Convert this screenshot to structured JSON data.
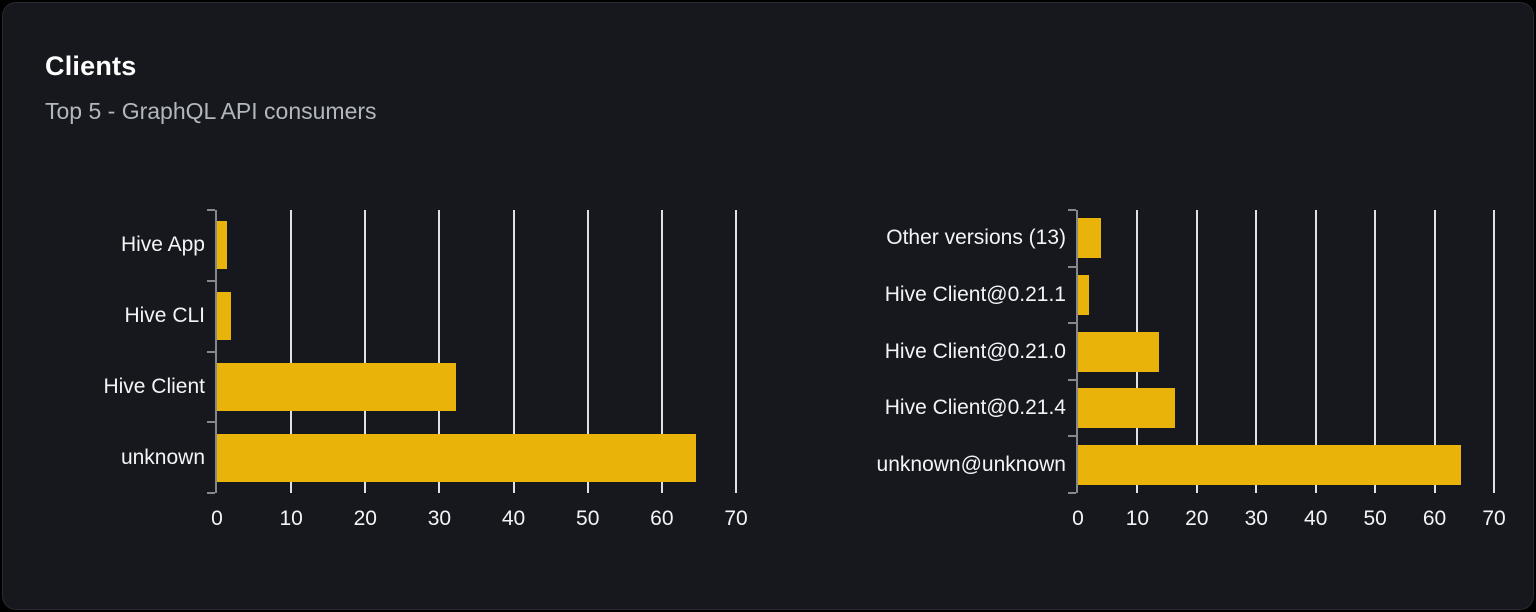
{
  "header": {
    "title": "Clients",
    "subtitle": "Top 5 - GraphQL API consumers"
  },
  "colors": {
    "page_bg": "#000000",
    "card_bg": "#16181d",
    "card_border": "#272a31",
    "bar": "#e9b30a",
    "gridline": "#dde2ea",
    "axis": "#85898f",
    "title": "#ffffff",
    "subtitle": "#b2b7bf",
    "label": "#f2f4f7"
  },
  "chart_data": [
    {
      "type": "bar",
      "orientation": "horizontal",
      "name": "clients-by-name",
      "categories": [
        "Hive App",
        "Hive CLI",
        "Hive Client",
        "unknown"
      ],
      "values": [
        1.3,
        1.9,
        32.2,
        64.6
      ],
      "xlim": [
        0,
        70
      ],
      "x_ticks": [
        0,
        10,
        20,
        30,
        40,
        50,
        60,
        70
      ],
      "grid": true,
      "legend": false,
      "title": "",
      "xlabel": "",
      "ylabel": ""
    },
    {
      "type": "bar",
      "orientation": "horizontal",
      "name": "clients-by-version",
      "categories": [
        "Other versions (13)",
        "Hive Client@0.21.1",
        "Hive Client@0.21.0",
        "Hive Client@0.21.4",
        "unknown@unknown"
      ],
      "values": [
        3.9,
        1.8,
        13.7,
        16.4,
        64.5
      ],
      "xlim": [
        0,
        70
      ],
      "x_ticks": [
        0,
        10,
        20,
        30,
        40,
        50,
        60,
        70
      ],
      "grid": true,
      "legend": false,
      "title": "",
      "xlabel": "",
      "ylabel": ""
    }
  ]
}
